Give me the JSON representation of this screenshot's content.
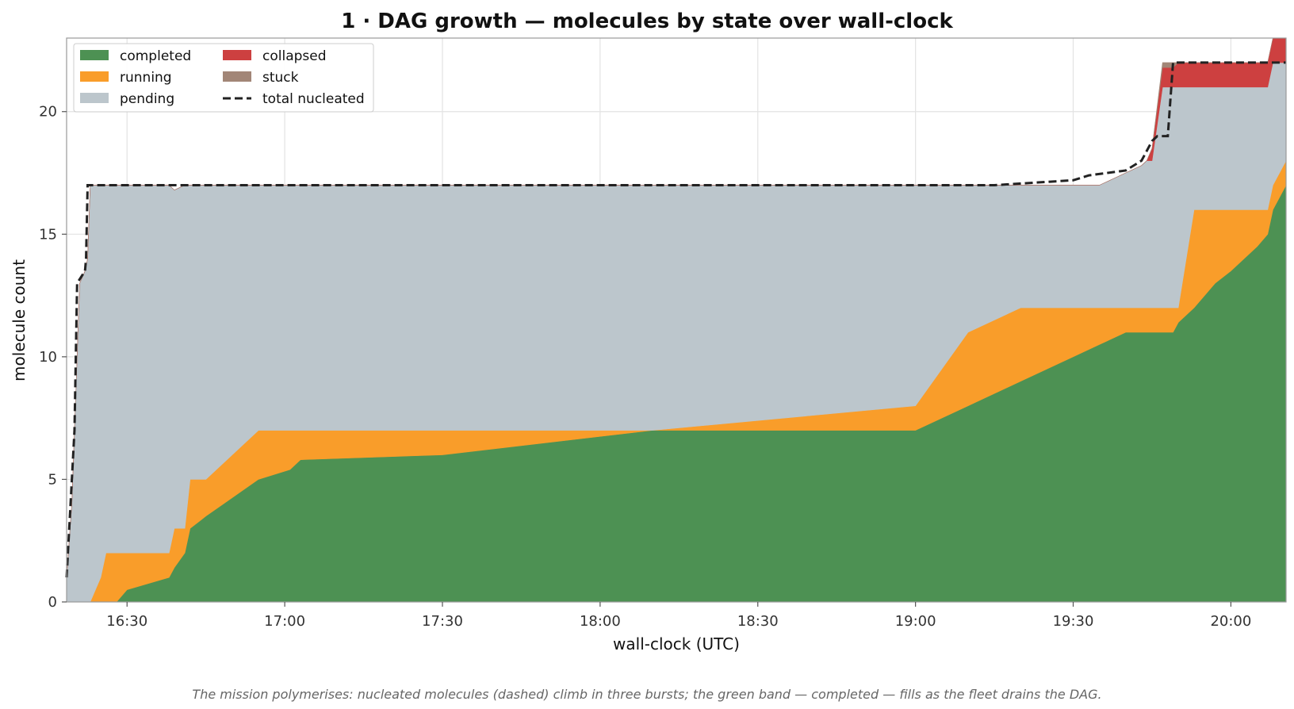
{
  "chart_data": {
    "type": "area",
    "stacked": true,
    "title": "1 · DAG growth — molecules by state over wall-clock",
    "xlabel": "wall-clock (UTC)",
    "ylabel": "molecule count",
    "x_unit": "minutes after 16:30 UTC",
    "xlim": [
      -11.5,
      220.5
    ],
    "ylim": [
      0,
      23
    ],
    "x_ticks": [
      0,
      30,
      60,
      90,
      120,
      150,
      180,
      210
    ],
    "x_tick_labels": [
      "16:30",
      "17:00",
      "17:30",
      "18:00",
      "18:30",
      "19:00",
      "19:30",
      "20:00"
    ],
    "y_ticks": [
      0,
      5,
      10,
      15,
      20
    ],
    "y_tick_labels": [
      "0",
      "5",
      "10",
      "15",
      "20"
    ],
    "grid": true,
    "legend_position": "top-left",
    "legend_columns": 2,
    "caption": "The mission polymerises: nucleated molecules (dashed) climb in three bursts; the green band — completed — fills as the fleet drains the DAG.",
    "x": [
      -11.5,
      -10.5,
      -10,
      -9,
      -8,
      -7.5,
      -7,
      -5,
      -4,
      -3,
      -2,
      0,
      8,
      9,
      11,
      12,
      15,
      25,
      31,
      33,
      60,
      100,
      150,
      160,
      170,
      180,
      185,
      190,
      193,
      194,
      195,
      197,
      199,
      200,
      203,
      207,
      210,
      215,
      217,
      218,
      220.5
    ],
    "series": [
      {
        "name": "completed",
        "color": "#4d9153",
        "values": [
          0,
          0,
          0,
          0,
          0,
          0,
          0,
          0,
          0,
          0,
          0,
          0.5,
          1,
          1.4,
          2,
          3,
          3.5,
          5,
          5.4,
          5.8,
          6,
          7,
          7,
          8,
          9,
          10,
          10.5,
          11,
          11,
          11,
          11,
          11,
          11,
          11.4,
          12,
          13,
          13.5,
          14.5,
          15,
          16,
          17
        ]
      },
      {
        "name": "running",
        "color": "#f99d2a",
        "values": [
          0,
          0,
          0,
          0,
          0,
          0,
          0,
          1,
          2,
          2,
          2,
          1.5,
          1,
          1.6,
          1,
          2,
          1.5,
          2,
          1.6,
          1.2,
          1,
          0,
          1,
          3,
          3,
          2,
          1.5,
          1,
          1,
          1,
          1,
          1,
          1,
          0.6,
          4,
          3,
          2.5,
          1.5,
          1,
          1,
          1
        ]
      },
      {
        "name": "pending",
        "color": "#bcc6cc",
        "values": [
          1,
          4,
          7,
          13,
          13.5,
          14,
          17,
          16,
          15,
          15,
          15,
          15,
          15,
          13.8,
          14,
          12,
          12,
          10,
          10,
          10,
          10,
          10,
          9,
          6,
          5,
          5,
          5,
          5.5,
          5.8,
          6,
          6,
          9,
          9,
          9,
          5,
          5,
          5,
          5,
          5,
          5,
          4
        ]
      },
      {
        "name": "collapsed",
        "color": "#cd4040",
        "values": [
          0,
          0,
          0,
          0,
          0,
          0,
          0,
          0,
          0,
          0,
          0,
          0,
          0,
          0,
          0,
          0,
          0,
          0,
          0,
          0,
          0,
          0,
          0,
          0,
          0,
          0,
          0,
          0,
          0,
          0,
          0.5,
          0.8,
          0.8,
          1,
          1,
          1,
          1,
          1,
          1,
          1,
          1
        ]
      },
      {
        "name": "stuck",
        "color": "#a28677",
        "values": [
          0,
          0,
          0,
          0,
          0,
          0,
          0,
          0,
          0,
          0,
          0,
          0,
          0,
          0,
          0,
          0,
          0,
          0,
          0,
          0,
          0,
          0,
          0,
          0,
          0,
          0,
          0,
          0,
          0,
          0,
          0,
          0.2,
          0.2,
          0,
          0,
          0,
          0,
          0,
          0,
          0,
          0
        ]
      }
    ],
    "total_nucleated": {
      "name": "total nucleated",
      "color": "#222222",
      "style": "dashed",
      "x": [
        -11.5,
        -11,
        -10.5,
        -10,
        -9.5,
        -8,
        -7.8,
        -7.5,
        -7.2,
        10,
        150,
        155,
        165,
        180,
        183,
        190,
        193,
        195,
        196,
        198,
        199,
        200,
        206,
        210,
        220.5
      ],
      "y": [
        1,
        3,
        5,
        7,
        13,
        13.5,
        14,
        17,
        17,
        17,
        17,
        17,
        17,
        17.2,
        17.4,
        17.6,
        18,
        18.8,
        19,
        19,
        22,
        22,
        22,
        22,
        22
      ]
    }
  }
}
